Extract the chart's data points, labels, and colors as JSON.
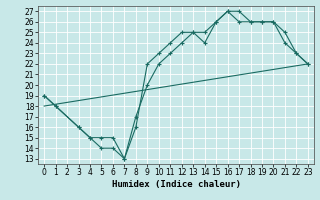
{
  "xlabel": "Humidex (Indice chaleur)",
  "xlim": [
    -0.5,
    23.5
  ],
  "ylim": [
    12.5,
    27.5
  ],
  "xticks": [
    0,
    1,
    2,
    3,
    4,
    5,
    6,
    7,
    8,
    9,
    10,
    11,
    12,
    13,
    14,
    15,
    16,
    17,
    18,
    19,
    20,
    21,
    22,
    23
  ],
  "yticks": [
    13,
    14,
    15,
    16,
    17,
    18,
    19,
    20,
    21,
    22,
    23,
    24,
    25,
    26,
    27
  ],
  "bg_color": "#c8e8e8",
  "grid_color": "#ffffff",
  "line_color": "#1a6b62",
  "line1_x": [
    0,
    1,
    3,
    4,
    5,
    6,
    7,
    8,
    9,
    10,
    11,
    12,
    13,
    14,
    15,
    16,
    17,
    18,
    19,
    20,
    21,
    22,
    23
  ],
  "line1_y": [
    19,
    18,
    16,
    15,
    14,
    14,
    13,
    16,
    22,
    23,
    24,
    25,
    25,
    24,
    26,
    27,
    27,
    26,
    26,
    26,
    25,
    23,
    22
  ],
  "line2_x": [
    0,
    1,
    3,
    4,
    5,
    6,
    7,
    8,
    9,
    10,
    11,
    12,
    13,
    14,
    15,
    16,
    17,
    18,
    19,
    20,
    21,
    22,
    23
  ],
  "line2_y": [
    19,
    18,
    16,
    15,
    15,
    15,
    13,
    17,
    20,
    22,
    23,
    24,
    25,
    25,
    26,
    27,
    26,
    26,
    26,
    26,
    24,
    23,
    22
  ],
  "line3_x": [
    0,
    23
  ],
  "line3_y": [
    18,
    22
  ],
  "marker": "+",
  "markersize": 3,
  "linewidth": 0.8,
  "fontsize_label": 6.5,
  "fontsize_tick": 5.5
}
